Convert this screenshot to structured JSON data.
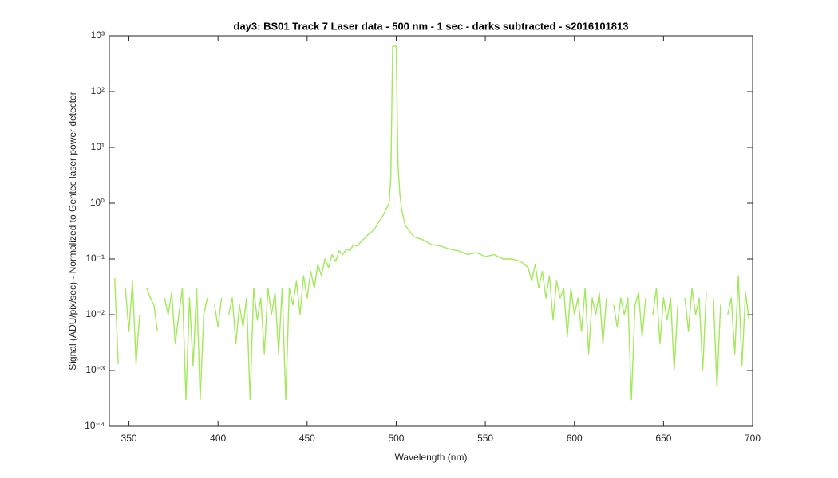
{
  "chart_data": {
    "type": "line",
    "title": "day3: BS01  Track 7 Laser data - 500 nm - 1 sec - darks subtracted - s2016101813",
    "x_label": "Wavelength (nm)",
    "y_label": "Signal (ADU/pix/sec) - Normalized to Gentec laser power detector",
    "color": "#a4e85c",
    "log_y": true,
    "x": [
      342,
      344,
      346,
      348,
      350,
      352,
      354,
      356,
      358,
      360,
      362,
      364,
      366,
      368,
      370,
      372,
      374,
      376,
      378,
      380,
      382,
      384,
      386,
      388,
      390,
      392,
      394,
      396,
      398,
      400,
      402,
      404,
      406,
      408,
      410,
      412,
      414,
      416,
      418,
      420,
      422,
      424,
      426,
      428,
      430,
      432,
      434,
      436,
      438,
      440,
      442,
      444,
      446,
      448,
      450,
      452,
      454,
      456,
      458,
      460,
      462,
      464,
      466,
      468,
      470,
      472,
      474,
      476,
      478,
      480,
      482,
      484,
      486,
      488,
      490,
      492,
      494,
      496,
      497,
      498,
      499,
      500,
      501,
      502,
      503,
      505,
      508,
      510,
      515,
      520,
      525,
      530,
      535,
      540,
      545,
      550,
      555,
      560,
      565,
      570,
      574,
      576,
      578,
      580,
      582,
      584,
      586,
      588,
      590,
      592,
      594,
      596,
      598,
      600,
      602,
      604,
      606,
      608,
      610,
      612,
      614,
      616,
      618,
      620,
      622,
      624,
      626,
      628,
      630,
      632,
      634,
      636,
      638,
      640,
      642,
      644,
      646,
      648,
      650,
      652,
      654,
      656,
      658,
      660,
      662,
      664,
      666,
      668,
      670,
      672,
      674,
      676,
      678,
      680,
      682,
      684,
      686,
      688,
      690,
      692,
      694,
      696,
      698
    ],
    "values": [
      0.045,
      0.0013,
      null,
      0.03,
      0.005,
      0.04,
      0.0013,
      0.01,
      null,
      0.03,
      0.02,
      0.015,
      0.005,
      null,
      0.02,
      0.01,
      0.025,
      0.003,
      0.01,
      0.03,
      0.0003,
      0.02,
      0.0012,
      0.03,
      0.0003,
      0.01,
      0.02,
      null,
      0.015,
      0.006,
      0.02,
      null,
      0.01,
      0.02,
      0.003,
      0.015,
      0.006,
      0.02,
      0.0003,
      0.03,
      0.008,
      0.02,
      0.002,
      0.03,
      0.01,
      0.025,
      0.002,
      0.03,
      0.0003,
      0.03,
      0.015,
      0.04,
      0.01,
      0.05,
      0.02,
      0.06,
      0.03,
      0.08,
      0.05,
      0.1,
      0.07,
      0.12,
      0.09,
      0.14,
      0.12,
      0.15,
      0.14,
      0.18,
      0.17,
      0.2,
      0.23,
      0.27,
      0.3,
      0.35,
      0.45,
      0.55,
      0.75,
      1.0,
      3,
      650,
      650,
      650,
      5,
      1.5,
      0.8,
      0.4,
      0.3,
      0.25,
      0.22,
      0.18,
      0.17,
      0.15,
      0.14,
      0.12,
      0.13,
      0.11,
      0.12,
      0.1,
      0.1,
      0.09,
      0.07,
      0.04,
      0.08,
      0.03,
      0.06,
      0.02,
      0.05,
      0.008,
      0.04,
      0.02,
      0.03,
      0.004,
      0.03,
      0.01,
      0.02,
      0.005,
      0.03,
      0.002,
      0.02,
      0.01,
      0.025,
      0.003,
      0.02,
      null,
      0.015,
      0.006,
      0.02,
      0.01,
      0.02,
      0.0003,
      0.015,
      0.025,
      0.004,
      0.02,
      null,
      0.01,
      0.03,
      0.003,
      0.02,
      0.008,
      0.02,
      0.001,
      0.015,
      null,
      0.02,
      0.005,
      0.03,
      0.01,
      0.02,
      0.001,
      0.025,
      null,
      0.02,
      0.0005,
      0.015,
      null,
      0.01,
      0.02,
      0.002,
      0.05,
      0.0012,
      0.025,
      0.008
    ],
    "xlim": [
      339,
      700
    ],
    "xticks": [
      350,
      400,
      450,
      500,
      550,
      600,
      650,
      700
    ],
    "ylim": [
      0.0001,
      1000
    ],
    "yticks": [
      {
        "value": 0.0001,
        "label": "10⁻⁴"
      },
      {
        "value": 0.001,
        "label": "10⁻³"
      },
      {
        "value": 0.01,
        "label": "10⁻²"
      },
      {
        "value": 0.1,
        "label": "10⁻¹"
      },
      {
        "value": 1,
        "label": "10⁰"
      },
      {
        "value": 10,
        "label": "10¹"
      },
      {
        "value": 100,
        "label": "10²"
      },
      {
        "value": 1000,
        "label": "10³"
      }
    ]
  }
}
